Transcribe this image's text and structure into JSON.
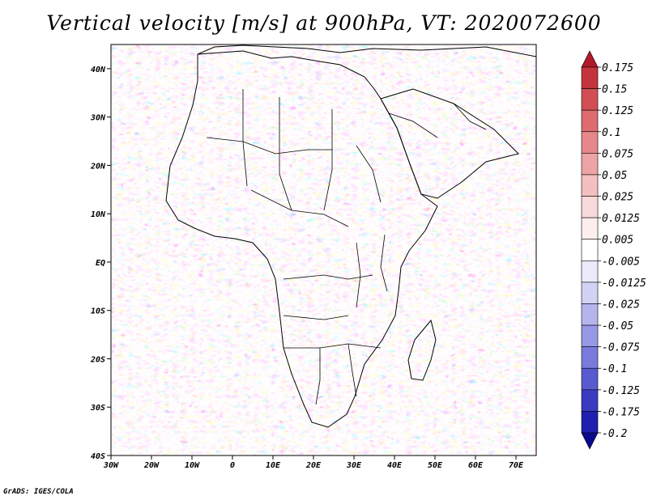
{
  "chart_data": {
    "type": "heatmap",
    "title": "Vertical velocity [m/s] at 900hPa, VT: 2020072600",
    "field": "vertical velocity",
    "units": "m/s",
    "level": "900hPa",
    "valid_time": "2020072600",
    "x": {
      "range": [
        -30,
        75
      ],
      "tick_values": [
        -30,
        -20,
        -10,
        0,
        10,
        20,
        30,
        40,
        50,
        60,
        70
      ],
      "tick_labels": [
        "30W",
        "20W",
        "10W",
        "0",
        "10E",
        "20E",
        "30E",
        "40E",
        "50E",
        "60E",
        "70E"
      ]
    },
    "y": {
      "range": [
        -40,
        45
      ],
      "tick_values": [
        -40,
        -30,
        -20,
        -10,
        0,
        10,
        20,
        30,
        40
      ],
      "tick_labels": [
        "40S",
        "30S",
        "20S",
        "10S",
        "EQ",
        "10N",
        "20N",
        "30N",
        "40N"
      ]
    },
    "colorbar": {
      "orientation": "vertical",
      "labels": [
        "0.175",
        "0.15",
        "0.125",
        "0.1",
        "0.075",
        "0.05",
        "0.025",
        "0.0125",
        "0.005",
        "-0.005",
        "-0.0125",
        "-0.025",
        "-0.05",
        "-0.075",
        "-0.1",
        "-0.125",
        "-0.175",
        "-0.2"
      ],
      "colors": [
        "#b2182b",
        "#c4343e",
        "#d24e55",
        "#dd6b70",
        "#e6878b",
        "#eea3a6",
        "#f4bfc1",
        "#f9d9da",
        "#fdeeee",
        "#ffffff",
        "#ebebfb",
        "#d2d2f5",
        "#b5b5ee",
        "#9898e6",
        "#7a7adc",
        "#5a5ad0",
        "#3b3bc2",
        "#2020b0",
        "#0a0a8f"
      ]
    },
    "projection": "lat-lon",
    "region": "Africa"
  },
  "credit": "GrADS: IGES/COLA"
}
